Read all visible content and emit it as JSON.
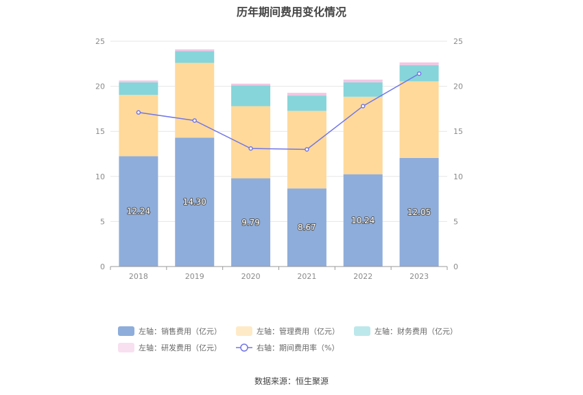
{
  "page": {
    "title": "历年期间费用变化情况",
    "source": "数据来源：恒生聚源"
  },
  "chart_data": {
    "type": "bar",
    "stacked": true,
    "categories": [
      "2018",
      "2019",
      "2020",
      "2021",
      "2022",
      "2023"
    ],
    "series": [
      {
        "name": "左轴：销售费用（亿元）",
        "axis": "left",
        "color": "#8eaddb",
        "values": [
          12.24,
          14.3,
          9.79,
          8.67,
          10.24,
          12.05
        ],
        "show_labels": true
      },
      {
        "name": "左轴：管理费用（亿元）",
        "axis": "left",
        "color": "#ffd99a",
        "values": [
          6.8,
          8.3,
          8.0,
          8.6,
          8.6,
          8.5
        ]
      },
      {
        "name": "左轴：财务费用（亿元）",
        "axis": "left",
        "color": "#86d5da",
        "values": [
          1.4,
          1.3,
          2.3,
          1.7,
          1.6,
          1.8
        ]
      },
      {
        "name": "左轴：研发费用（亿元）",
        "axis": "left",
        "color": "#f2c6e4",
        "values": [
          0.2,
          0.2,
          0.2,
          0.3,
          0.3,
          0.3
        ]
      },
      {
        "name": "右轴：期间费用率（%）",
        "axis": "right",
        "type": "line",
        "color": "#7076e8",
        "values": [
          17.1,
          16.2,
          13.1,
          13.0,
          17.8,
          21.4
        ]
      }
    ],
    "yleft": {
      "min": 0,
      "max": 25,
      "ticks": [
        "0",
        "5",
        "10",
        "15",
        "20",
        "25"
      ]
    },
    "yright": {
      "min": 0,
      "max": 25,
      "ticks": [
        "0",
        "5",
        "10",
        "15",
        "20",
        "25"
      ]
    },
    "grid": true,
    "legend_position": "bottom"
  }
}
